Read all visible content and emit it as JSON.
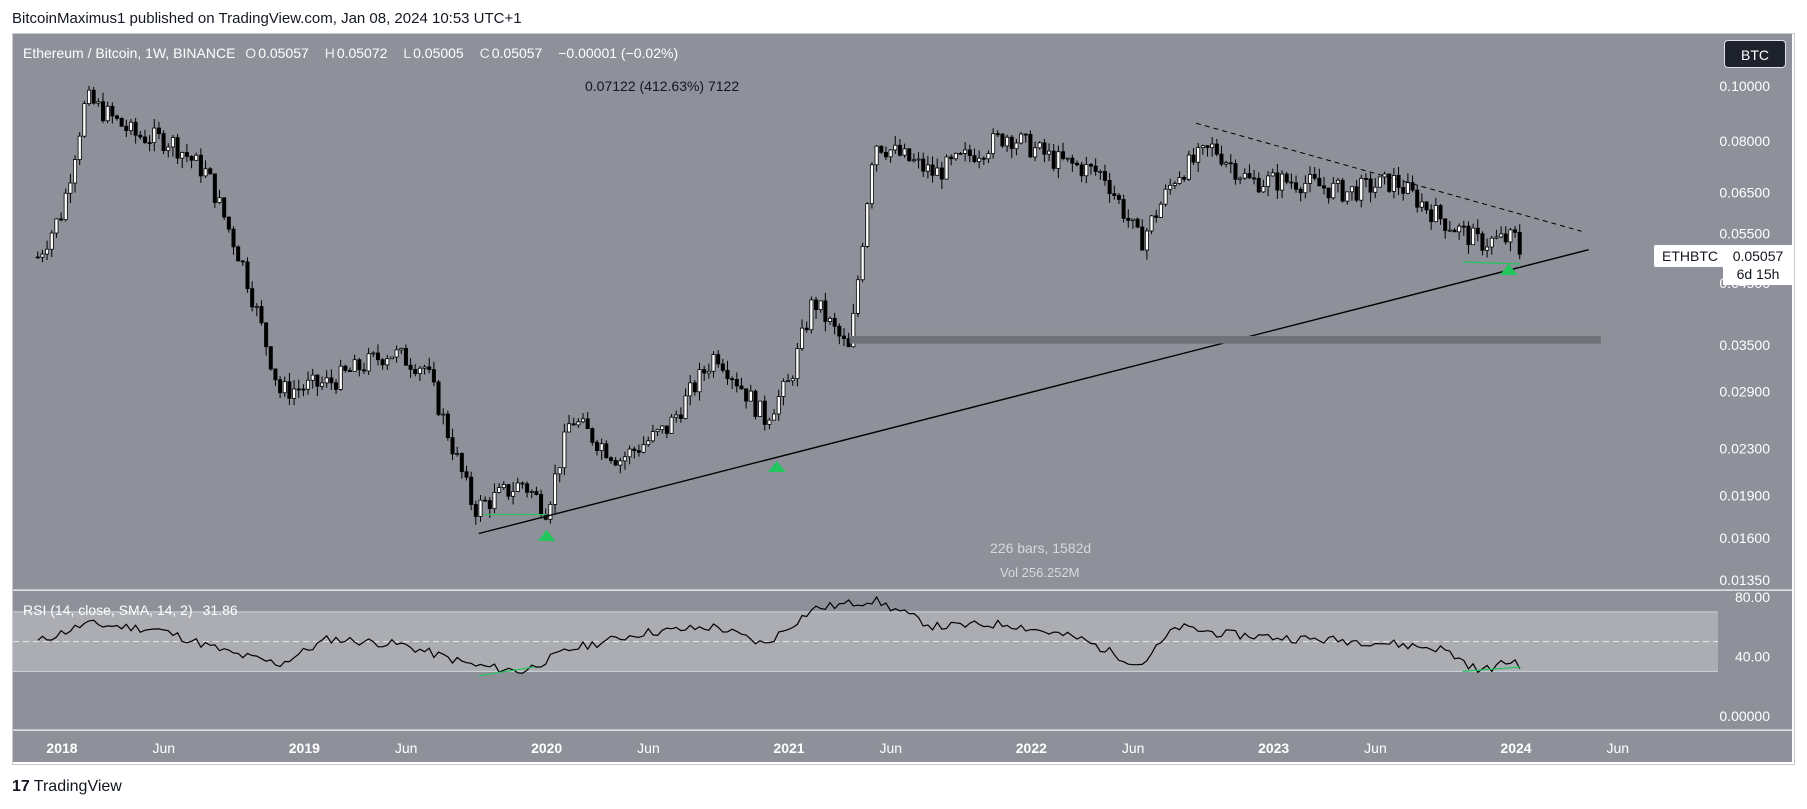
{
  "header": {
    "published": "BitcoinMaximus1 published on TradingView.com, Jan 08, 2024 10:53 UTC+1"
  },
  "legend": {
    "symbol": "Ethereum / Bitcoin, 1W, BINANCE",
    "o_label": "O",
    "o": "0.05057",
    "h_label": "H",
    "h": "0.05072",
    "l_label": "L",
    "l": "0.05005",
    "c_label": "C",
    "c": "0.05057",
    "change": "−0.00001 (−0.02%)"
  },
  "currency_badge": "BTC",
  "measure_label": "0.07122 (412.63%) 7122",
  "bars_info": "226 bars, 1582d",
  "vol_info": "Vol 256.252M",
  "last_price": {
    "symbol": "ETHBTC",
    "price": "0.05057",
    "countdown": "6d 15h"
  },
  "rsi": {
    "label": "RSI (14, close, SMA, 14, 2)",
    "value": "31.86"
  },
  "brand": {
    "logo": "17",
    "name": "TradingView"
  },
  "colors": {
    "chart_bg": "#8e9199",
    "rsi_bg": "#8e9199",
    "rsi_band": "#abadb3",
    "candle": "#000000",
    "arrow": "#22c55e",
    "line": "#000000"
  },
  "chart_data": [
    {
      "type": "candlestick",
      "title": "Ethereum / Bitcoin, 1W, BINANCE",
      "y_scale": "log",
      "ylim": [
        0.0128,
        0.115
      ],
      "y_ticks": [
        "0.10000",
        "0.08000",
        "0.06500",
        "0.05500",
        "0.04500",
        "0.03500",
        "0.02900",
        "0.02300",
        "0.01900",
        "0.01600",
        "0.01350"
      ],
      "x_ticks": [
        "2018",
        "Jun",
        "2019",
        "Jun",
        "2020",
        "Jun",
        "2021",
        "Jun",
        "2022",
        "Jun",
        "2023",
        "Jun",
        "2024",
        "Jun"
      ],
      "series": [
        {
          "x": [
            2017.9,
            2018.0,
            2018.1,
            2018.3,
            2018.45,
            2018.6,
            2018.75,
            2018.9,
            2019.1,
            2019.35,
            2019.5,
            2019.6,
            2019.7,
            2019.9,
            2020.0,
            2020.1,
            2020.3,
            2020.5,
            2020.7,
            2020.9,
            2021.0,
            2021.1,
            2021.25,
            2021.35,
            2021.6,
            2021.9,
            2022.1,
            2022.3,
            2022.45,
            2022.6,
            2022.75,
            2022.9,
            2023.1,
            2023.3,
            2023.5,
            2023.7,
            2023.85,
            2024.0,
            2024.02
          ],
          "values": [
            0.05,
            0.06,
            0.095,
            0.082,
            0.08,
            0.07,
            0.048,
            0.029,
            0.03,
            0.034,
            0.032,
            0.024,
            0.018,
            0.02,
            0.018,
            0.026,
            0.022,
            0.025,
            0.034,
            0.026,
            0.03,
            0.042,
            0.034,
            0.08,
            0.07,
            0.082,
            0.074,
            0.07,
            0.053,
            0.07,
            0.078,
            0.068,
            0.068,
            0.065,
            0.068,
            0.058,
            0.053,
            0.054,
            0.05057
          ]
        }
      ]
    },
    {
      "type": "line",
      "title": "RSI (14, close, SMA, 14, 2)",
      "ylim": [
        0,
        100
      ],
      "y_ticks": [
        "80.00",
        "40.00",
        "0.00000"
      ],
      "band": [
        30,
        70
      ],
      "series": [
        {
          "x": [
            2017.9,
            2018.1,
            2018.4,
            2018.7,
            2018.9,
            2019.1,
            2019.4,
            2019.7,
            2019.9,
            2020.1,
            2020.4,
            2020.7,
            2020.9,
            2021.1,
            2021.35,
            2021.6,
            2021.9,
            2022.2,
            2022.45,
            2022.6,
            2022.8,
            2023.1,
            2023.4,
            2023.7,
            2023.85,
            2024.0,
            2024.02
          ],
          "values": [
            50,
            62,
            58,
            42,
            35,
            52,
            48,
            34,
            30,
            45,
            56,
            60,
            48,
            72,
            78,
            60,
            62,
            52,
            34,
            60,
            55,
            52,
            50,
            45,
            30,
            38,
            31.86
          ]
        }
      ]
    }
  ]
}
